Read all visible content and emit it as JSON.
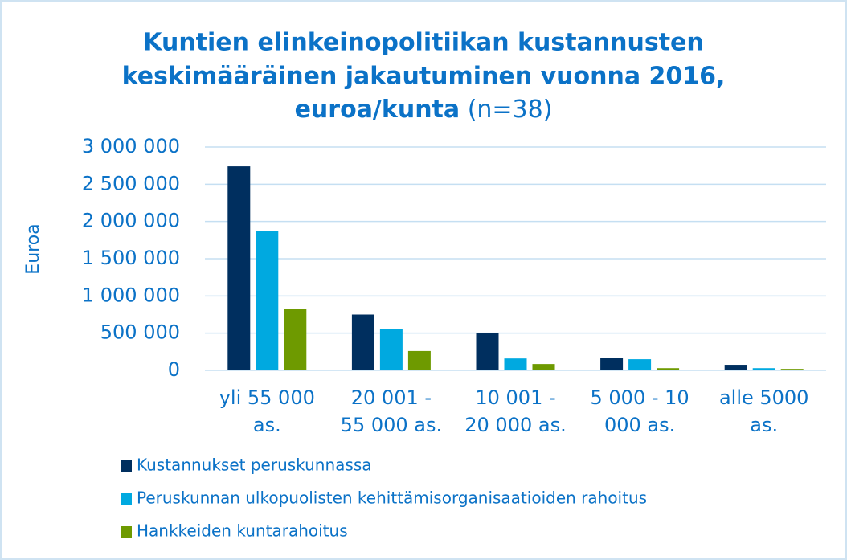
{
  "chart_data": {
    "type": "bar",
    "title": [
      "Kuntien elinkeinopolitiikan kustannusten",
      "keskimääräinen jakautuminen vuonna 2016,",
      "euroa/kunta"
    ],
    "subtitle": "(n=38)",
    "y_label": "Euroa",
    "categories": [
      [
        "yli 55 000",
        "as."
      ],
      [
        "20 001 -",
        "55 000 as."
      ],
      [
        "10 001 -",
        "20 000 as."
      ],
      [
        "5 000 - 10",
        "000 as."
      ],
      [
        "alle 5000",
        "as."
      ]
    ],
    "series": [
      {
        "name": "Kustannukset peruskunnassa",
        "color": "#002f5f",
        "values": [
          2740000,
          750000,
          500000,
          170000,
          75000
        ]
      },
      {
        "name": "Peruskunnan ulkopuolisten kehittämisorganisaatioiden rahoitus",
        "color": "#00a9e0",
        "values": [
          1870000,
          560000,
          160000,
          150000,
          30000
        ]
      },
      {
        "name": "Hankkeiden kuntarahoitus",
        "color": "#6e9a00",
        "values": [
          830000,
          260000,
          85000,
          30000,
          20000
        ]
      }
    ],
    "ylim": [
      0,
      3000000
    ],
    "yticks": [
      0,
      {
        "value": 500000,
        "label": "500 000"
      },
      {
        "value": 1000000,
        "label": "1 000 000"
      },
      {
        "value": 1500000,
        "label": "1 500 000"
      },
      {
        "value": 2000000,
        "label": "2 000 000"
      },
      {
        "value": 2500000,
        "label": "2 500 000"
      },
      {
        "value": 3000000,
        "label": "3 000 000"
      }
    ],
    "grid": true,
    "legend": "bottom"
  }
}
